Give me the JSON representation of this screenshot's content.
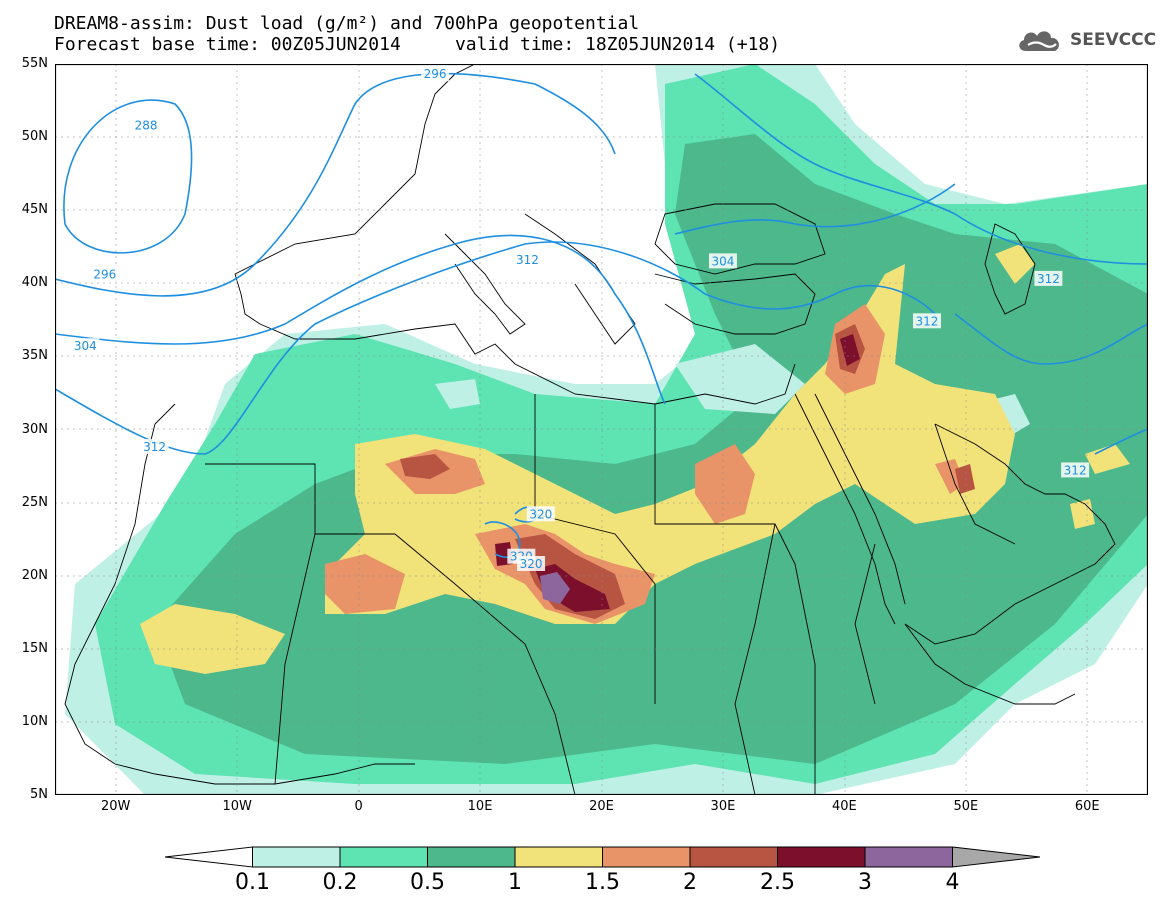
{
  "header": {
    "line1": "DREAM8-assim: Dust load (g/m²) and 700hPa geopotential",
    "line2": "Forecast base time: 00Z05JUN2014     valid time: 18Z05JUN2014 (+18)"
  },
  "logo": {
    "text": "SEEVCCC",
    "icon": "cloud-icon"
  },
  "axes": {
    "lat_labels": [
      "55N",
      "50N",
      "45N",
      "40N",
      "35N",
      "30N",
      "25N",
      "20N",
      "15N",
      "10N",
      "5N"
    ],
    "lon_labels": [
      "20W",
      "10W",
      "0",
      "10E",
      "20E",
      "30E",
      "40E",
      "50E",
      "60E"
    ],
    "lat_range": [
      5,
      55
    ],
    "lon_range": [
      -25,
      65
    ]
  },
  "contours": {
    "color": "#1e8fe0",
    "labels": [
      {
        "text": "288",
        "lon": -17.5,
        "lat": 50.8
      },
      {
        "text": "296",
        "lon": 6.3,
        "lat": 54.3
      },
      {
        "text": "296",
        "lon": -20.9,
        "lat": 40.6
      },
      {
        "text": "304",
        "lon": -22.5,
        "lat": 35.7
      },
      {
        "text": "304",
        "lon": 30.0,
        "lat": 41.5
      },
      {
        "text": "312",
        "lon": -16.8,
        "lat": 28.8
      },
      {
        "text": "312",
        "lon": 13.9,
        "lat": 41.6
      },
      {
        "text": "312",
        "lon": 46.8,
        "lat": 37.4
      },
      {
        "text": "312",
        "lon": 56.8,
        "lat": 40.3
      },
      {
        "text": "312",
        "lon": 59.0,
        "lat": 27.2
      },
      {
        "text": "320",
        "lon": 15.0,
        "lat": 24.2
      },
      {
        "text": "320",
        "lon": 13.4,
        "lat": 21.3
      },
      {
        "text": "320",
        "lon": 14.2,
        "lat": 20.8
      }
    ]
  },
  "colorbar": {
    "labels": [
      "0.1",
      "0.2",
      "0.5",
      "1",
      "1.5",
      "2",
      "2.5",
      "3",
      "4"
    ],
    "colors": [
      "#ffffff",
      "#bff0e6",
      "#5ee3b2",
      "#4cb88c",
      "#f2e27a",
      "#e89468",
      "#b85442",
      "#7c0f2c",
      "#8c669c",
      "#a8a8a8"
    ]
  }
}
